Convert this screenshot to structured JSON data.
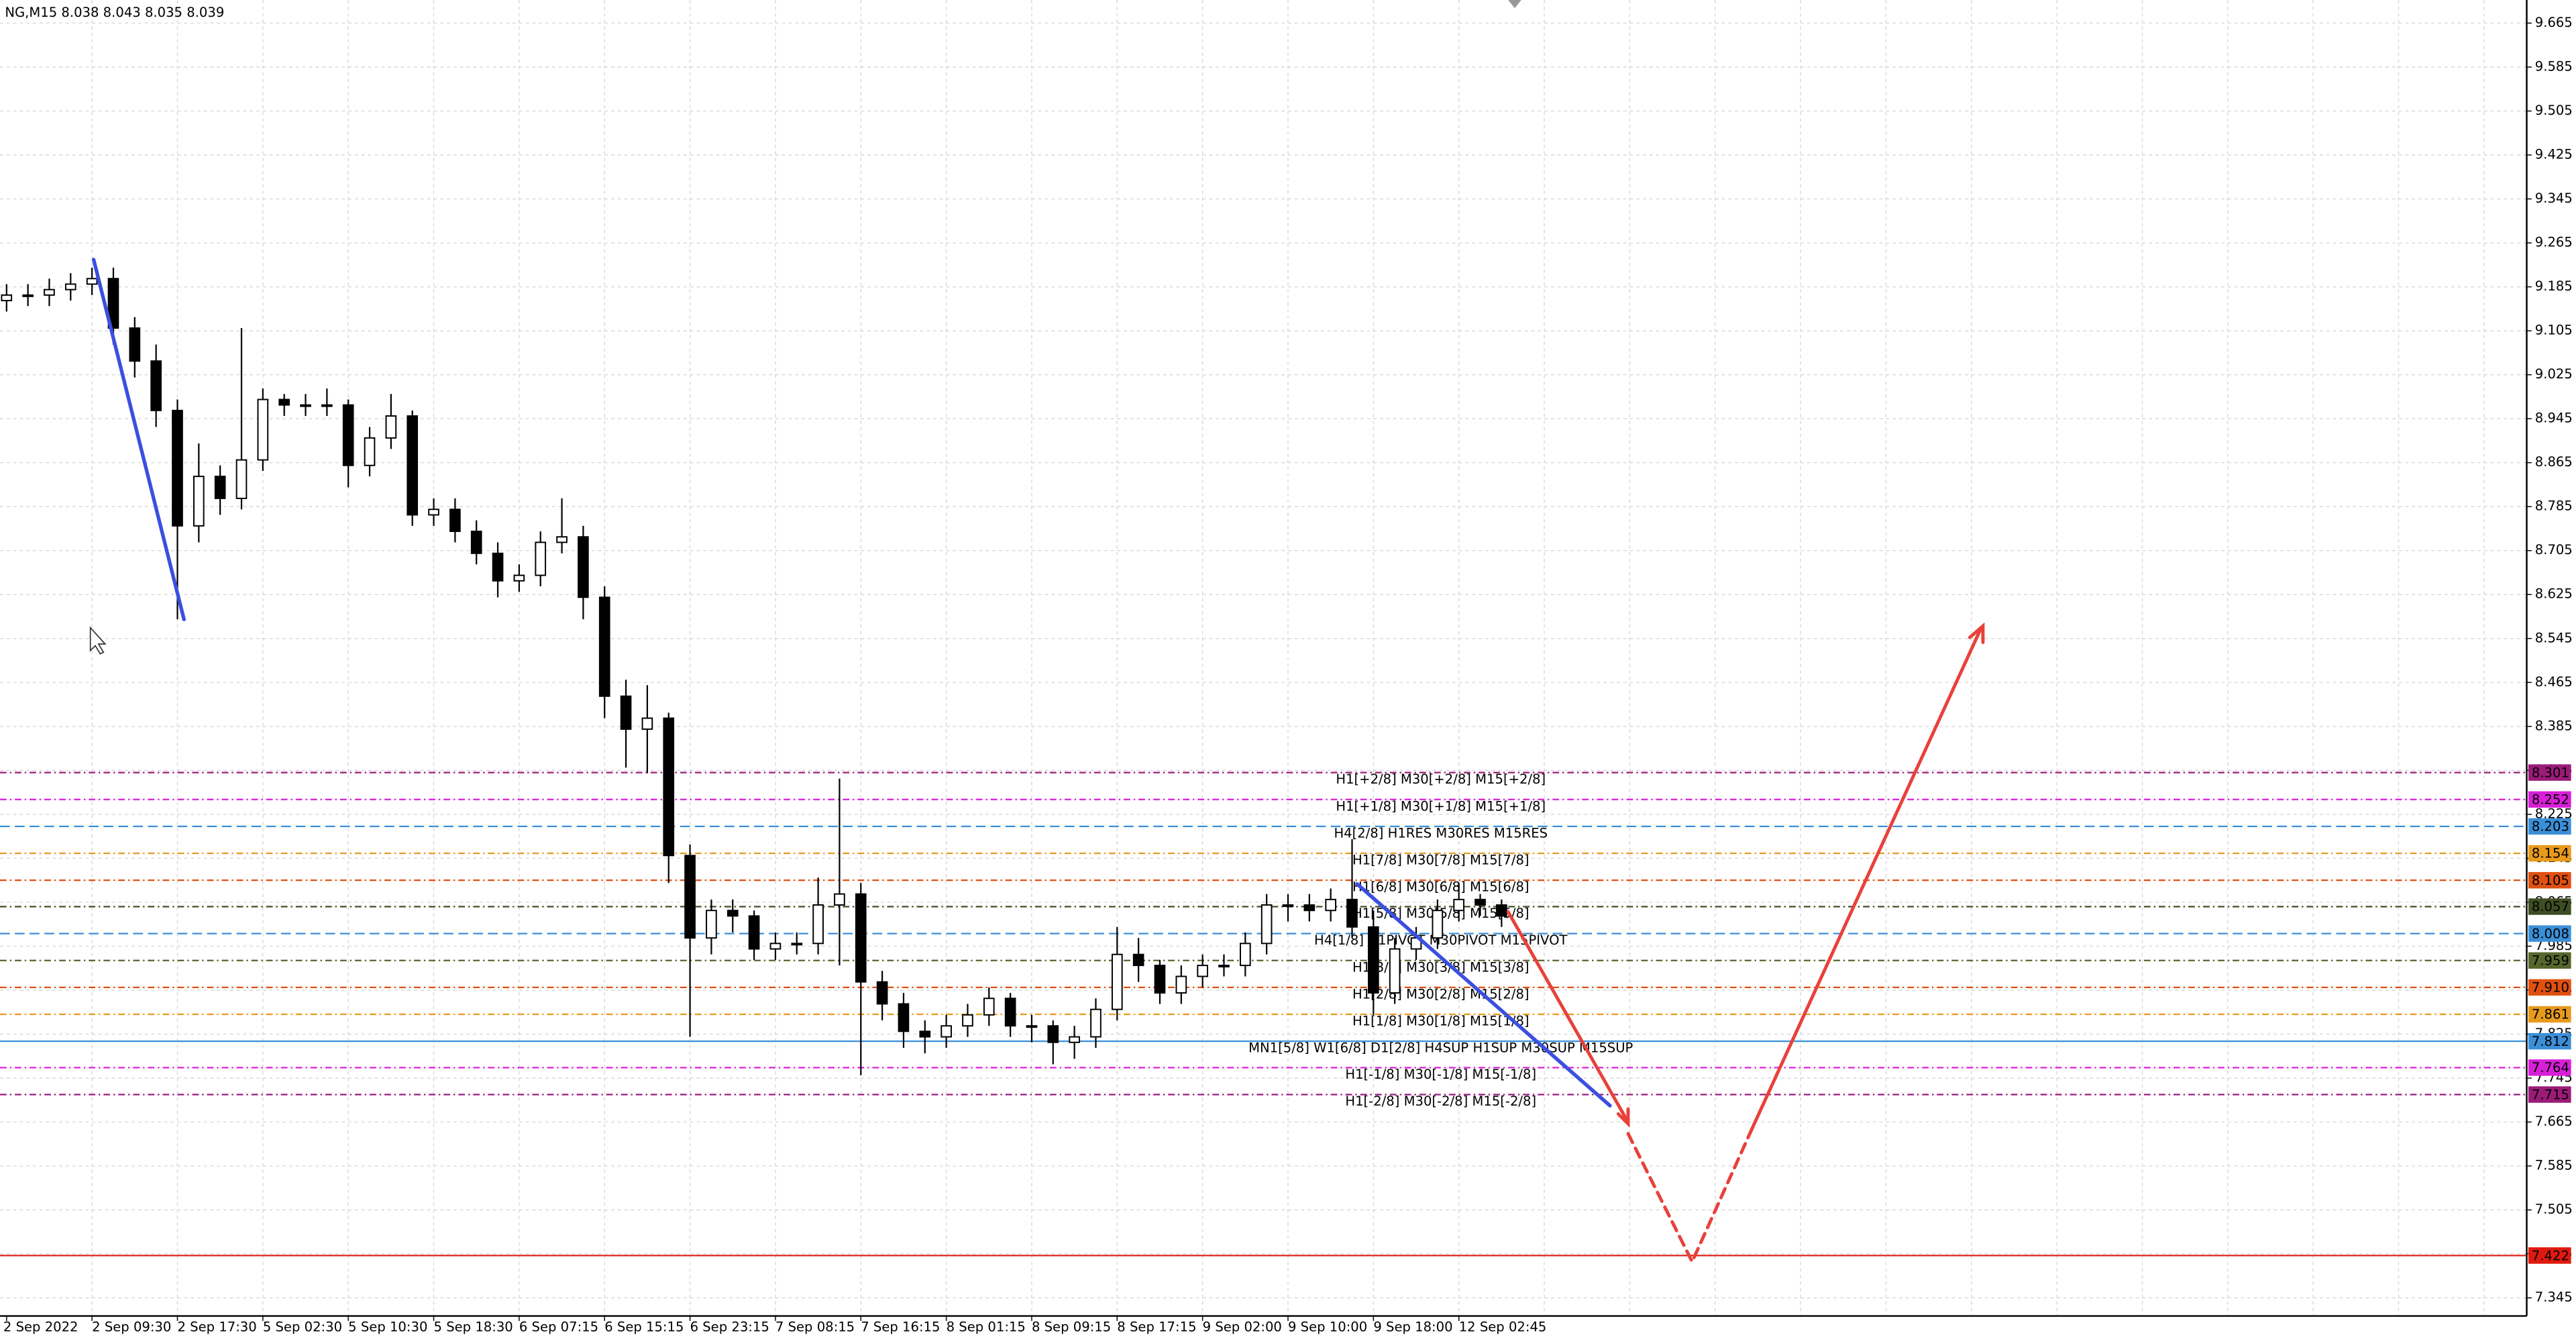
{
  "chart_data": {
    "type": "candlestick",
    "title": "NG,M15  8.038 8.043 8.035 8.039",
    "categories": [
      "2 Sep 2022",
      null,
      null,
      null,
      "2 Sep 09:30",
      null,
      null,
      null,
      "2 Sep 17:30",
      null,
      null,
      null,
      "5 Sep 02:30",
      null,
      null,
      null,
      "5 Sep 10:30",
      null,
      null,
      null,
      "5 Sep 18:30",
      null,
      null,
      null,
      "6 Sep 07:15",
      null,
      null,
      null,
      "6 Sep 15:15",
      null,
      null,
      null,
      "6 Sep 23:15",
      null,
      null,
      null,
      "7 Sep 08:15",
      null,
      null,
      null,
      "7 Sep 16:15",
      null,
      null,
      null,
      "8 Sep 01:15",
      null,
      null,
      null,
      "8 Sep 09:15",
      null,
      null,
      null,
      "8 Sep 17:15",
      null,
      null,
      null,
      "9 Sep 02:00",
      null,
      null,
      null,
      "9 Sep 10:00",
      null,
      null,
      null,
      "9 Sep 18:00",
      null,
      null,
      null,
      "12 Sep 02:45",
      null,
      null
    ],
    "open": [
      9.16,
      9.17,
      9.17,
      9.18,
      9.19,
      9.2,
      9.11,
      9.05,
      8.96,
      8.75,
      8.84,
      8.8,
      8.87,
      8.98,
      8.97,
      8.97,
      8.97,
      8.86,
      8.91,
      8.95,
      8.77,
      8.78,
      8.74,
      8.7,
      8.65,
      8.66,
      8.72,
      8.73,
      8.62,
      8.44,
      8.38,
      8.4,
      8.15,
      8.0,
      8.05,
      8.04,
      7.98,
      7.99,
      7.99,
      8.06,
      8.08,
      7.92,
      7.88,
      7.83,
      7.82,
      7.84,
      7.86,
      7.89,
      7.84,
      7.84,
      7.81,
      7.82,
      7.87,
      7.97,
      7.95,
      7.9,
      7.93,
      7.95,
      7.95,
      7.99,
      8.06,
      8.06,
      8.05,
      8.07,
      8.02,
      7.9,
      7.98,
      8.0,
      8.05,
      8.07,
      8.06
    ],
    "high": [
      9.19,
      9.19,
      9.2,
      9.21,
      9.22,
      9.22,
      9.13,
      9.08,
      8.98,
      8.9,
      8.86,
      9.11,
      9.0,
      8.99,
      8.99,
      9.0,
      8.98,
      8.93,
      8.99,
      8.96,
      8.8,
      8.8,
      8.76,
      8.72,
      8.68,
      8.74,
      8.8,
      8.75,
      8.64,
      8.47,
      8.46,
      8.41,
      8.17,
      8.07,
      8.07,
      8.05,
      8.01,
      8.01,
      8.11,
      8.29,
      8.1,
      7.94,
      7.9,
      7.85,
      7.86,
      7.88,
      7.91,
      7.9,
      7.86,
      7.85,
      7.84,
      7.89,
      8.02,
      8.0,
      7.96,
      7.95,
      7.97,
      7.97,
      8.01,
      8.08,
      8.08,
      8.08,
      8.09,
      8.18,
      8.05,
      8.0,
      8.02,
      8.07,
      8.1,
      8.08,
      8.07
    ],
    "low": [
      9.14,
      9.15,
      9.15,
      9.16,
      9.17,
      9.08,
      9.02,
      8.93,
      8.58,
      8.72,
      8.77,
      8.78,
      8.85,
      8.95,
      8.95,
      8.95,
      8.82,
      8.84,
      8.89,
      8.75,
      8.75,
      8.72,
      8.68,
      8.62,
      8.63,
      8.64,
      8.7,
      8.58,
      8.4,
      8.31,
      8.3,
      8.1,
      7.82,
      7.97,
      8.01,
      7.96,
      7.96,
      7.97,
      7.97,
      7.95,
      7.75,
      7.85,
      7.8,
      7.79,
      7.8,
      7.82,
      7.84,
      7.82,
      7.81,
      7.77,
      7.78,
      7.8,
      7.85,
      7.92,
      7.88,
      7.88,
      7.91,
      7.93,
      7.93,
      7.97,
      8.03,
      8.03,
      8.03,
      8.0,
      7.86,
      7.88,
      7.96,
      7.98,
      8.03,
      8.04,
      8.02
    ],
    "close": [
      9.17,
      9.17,
      9.18,
      9.19,
      9.2,
      9.11,
      9.05,
      8.96,
      8.75,
      8.84,
      8.8,
      8.87,
      8.98,
      8.97,
      8.97,
      8.97,
      8.86,
      8.91,
      8.95,
      8.77,
      8.78,
      8.74,
      8.7,
      8.65,
      8.66,
      8.72,
      8.73,
      8.62,
      8.44,
      8.38,
      8.4,
      8.15,
      8.0,
      8.05,
      8.04,
      7.98,
      7.99,
      7.99,
      8.06,
      8.08,
      7.92,
      7.88,
      7.83,
      7.82,
      7.84,
      7.86,
      7.89,
      7.84,
      7.84,
      7.81,
      7.82,
      7.87,
      7.97,
      7.95,
      7.9,
      7.93,
      7.95,
      7.95,
      7.99,
      8.06,
      8.06,
      8.05,
      8.07,
      8.02,
      7.9,
      7.98,
      8.0,
      8.05,
      8.07,
      8.06,
      8.04
    ],
    "ylim": [
      7.312,
      9.707
    ],
    "yticks": [
      9.665,
      9.585,
      9.505,
      9.425,
      9.345,
      9.265,
      9.185,
      9.105,
      9.025,
      8.945,
      8.865,
      8.785,
      8.705,
      8.625,
      8.545,
      8.465,
      8.385,
      8.305,
      8.225,
      8.145,
      8.065,
      7.985,
      7.905,
      7.825,
      7.745,
      7.665,
      7.585,
      7.505,
      7.425,
      7.345
    ],
    "grid": true,
    "levels": [
      {
        "value": 8.301,
        "label": "H1[+2/8] M30[+2/8] M15[+2/8]",
        "color": "#9b1b78",
        "dash": "4 2 1 2"
      },
      {
        "value": 8.252,
        "label": "H1[+1/8] M30[+1/8] M15[+1/8]",
        "color": "#d81fd8",
        "dash": "4 2 1 2"
      },
      {
        "value": 8.203,
        "label": "H4[2/8] H1RES M30RES M15RES",
        "color": "#3b8fd9",
        "dash": "6 3"
      },
      {
        "value": 8.154,
        "label": "H1[7/8] M30[7/8] M15[7/8]",
        "color": "#e89a1c",
        "dash": "4 2 1 2"
      },
      {
        "value": 8.105,
        "label": "H1[6/8] M30[6/8] M15[6/8]",
        "color": "#e0500f",
        "dash": "4 2 1 2"
      },
      {
        "value": 8.057,
        "label": "H1[5/8] M30[5/8] M15[5/8]",
        "color": "#3f4e22",
        "dash": "4 2 1 2"
      },
      {
        "value": 8.008,
        "label": "H4[1/8] H1PIVOT M30PIVOT M15PIVOT",
        "color": "#3b8fd9",
        "dash": "6 3"
      },
      {
        "value": 7.959,
        "label": "H1[3/8] M30[3/8] M15[3/8]",
        "color": "#56672c",
        "dash": "4 2 1 2"
      },
      {
        "value": 7.91,
        "value_label": "7.910",
        "label": "H1[2/8] M30[2/8] M15[2/8]",
        "color": "#e0500f",
        "dash": "4 2 1 2"
      },
      {
        "value": 7.861,
        "label": "H1[1/8] M30[1/8] M15[1/8]",
        "color": "#e89a1c",
        "dash": "4 2 1 2"
      },
      {
        "value": 7.812,
        "label": "MN1[5/8] W1[6/8] D1[2/8] H4SUP H1SUP M30SUP M15SUP",
        "color": "#3b8fd9",
        "dash": "none"
      },
      {
        "value": 7.764,
        "label": "H1[-1/8] M30[-1/8] M15[-1/8]",
        "color": "#d81fd8",
        "dash": "4 2 1 2"
      },
      {
        "value": 7.715,
        "label": "H1[-2/8] M30[-2/8] M15[-2/8]",
        "color": "#9b1b78",
        "dash": "4 2 1 2"
      },
      {
        "value": 7.422,
        "color": "#e0190f",
        "dash": "none"
      }
    ]
  }
}
